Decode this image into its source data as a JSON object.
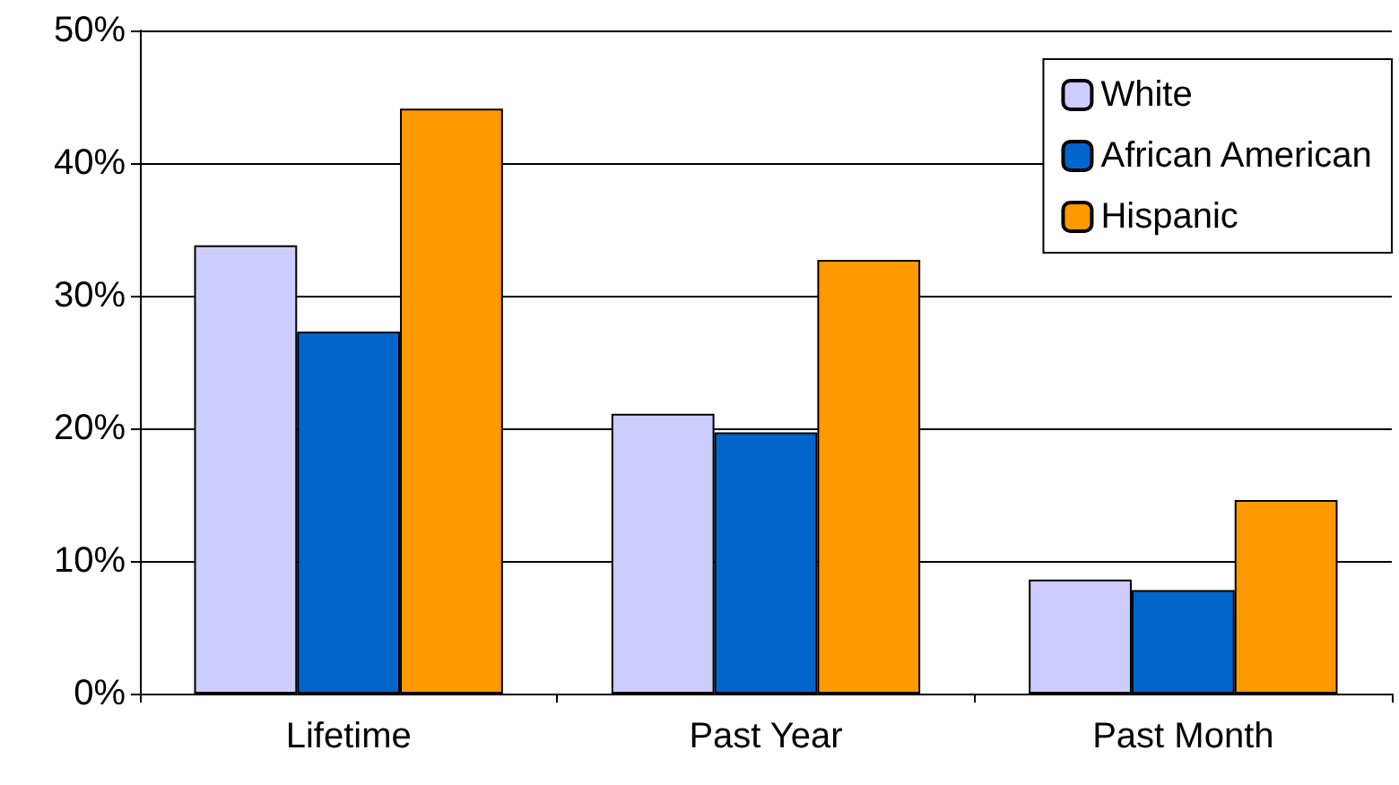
{
  "chart_data": {
    "type": "bar",
    "categories": [
      "Lifetime",
      "Past Year",
      "Past Month"
    ],
    "series": [
      {
        "name": "White",
        "color": "#ccccff",
        "values": [
          33.8,
          21.1,
          8.6
        ]
      },
      {
        "name": "African American",
        "color": "#0066cc",
        "values": [
          27.3,
          19.7,
          7.8
        ]
      },
      {
        "name": "Hispanic",
        "color": "#ff9900",
        "values": [
          44.1,
          32.7,
          14.6
        ]
      }
    ],
    "ylim": [
      0,
      50
    ],
    "yticks": [
      {
        "value": 0,
        "label": "0%"
      },
      {
        "value": 10,
        "label": "10%"
      },
      {
        "value": 20,
        "label": "20%"
      },
      {
        "value": 30,
        "label": "30%"
      },
      {
        "value": 40,
        "label": "40%"
      },
      {
        "value": 50,
        "label": "50%"
      }
    ],
    "grid": "y",
    "legend": "top right"
  }
}
